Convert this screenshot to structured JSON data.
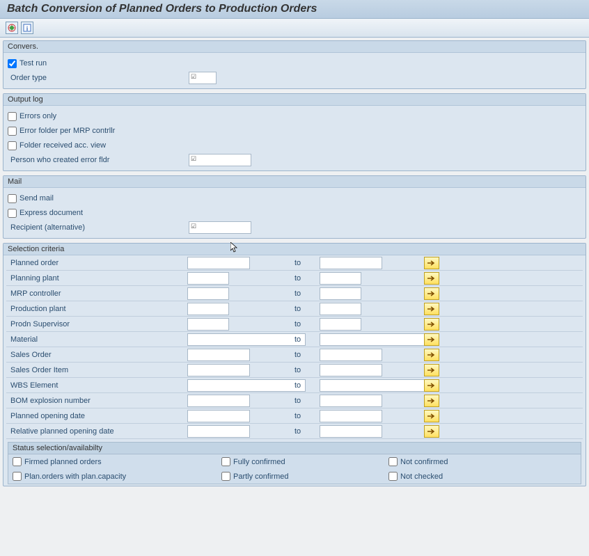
{
  "title": "Batch Conversion of Planned Orders to Production Orders",
  "toolbar": {
    "execute_icon": "execute",
    "info_icon": "info"
  },
  "panels": {
    "convers": {
      "title": "Convers.",
      "test_run": {
        "label": "Test run",
        "checked": true
      },
      "order_type": {
        "label": "Order type",
        "value": ""
      }
    },
    "output_log": {
      "title": "Output log",
      "errors_only": {
        "label": "Errors only",
        "checked": false
      },
      "error_folder_mrp": {
        "label": "Error folder per MRP contrllr",
        "checked": false
      },
      "folder_received": {
        "label": "Folder received acc. view",
        "checked": false
      },
      "person_created": {
        "label": "Person who created error fldr",
        "value": ""
      }
    },
    "mail": {
      "title": "Mail",
      "send_mail": {
        "label": "Send mail",
        "checked": false
      },
      "express_doc": {
        "label": "Express document",
        "checked": false
      },
      "recipient": {
        "label": "Recipient (alternative)",
        "value": ""
      }
    },
    "selection": {
      "title": "Selection criteria",
      "to_label": "to",
      "rows": [
        {
          "label": "Planned order",
          "from": "",
          "to": "",
          "from_w": "input-md",
          "to_w": "input-md"
        },
        {
          "label": "Planning plant",
          "from": "",
          "to": "",
          "from_w": "input-sm",
          "to_w": "input-sm"
        },
        {
          "label": "MRP controller",
          "from": "",
          "to": "",
          "from_w": "input-sm",
          "to_w": "input-sm"
        },
        {
          "label": "Production plant",
          "from": "",
          "to": "",
          "from_w": "input-sm",
          "to_w": "input-sm"
        },
        {
          "label": "Prodn Supervisor",
          "from": "",
          "to": "",
          "from_w": "input-sm",
          "to_w": "input-sm"
        },
        {
          "label": "Material",
          "from": "",
          "to": "",
          "from_w": "input-xl",
          "to_w": "input-xl"
        },
        {
          "label": "Sales Order",
          "from": "",
          "to": "",
          "from_w": "input-md",
          "to_w": "input-md"
        },
        {
          "label": "Sales Order Item",
          "from": "",
          "to": "",
          "from_w": "input-md",
          "to_w": "input-md"
        },
        {
          "label": "WBS Element",
          "from": "",
          "to": "",
          "from_w": "input-xl",
          "to_w": "input-xl"
        },
        {
          "label": "BOM explosion number",
          "from": "",
          "to": "",
          "from_w": "input-md",
          "to_w": "input-md"
        },
        {
          "label": "Planned opening date",
          "from": "",
          "to": "",
          "from_w": "input-md",
          "to_w": "input-md"
        },
        {
          "label": "Relative planned opening date",
          "from": "",
          "to": "",
          "from_w": "input-md",
          "to_w": "input-md"
        }
      ],
      "status": {
        "title": "Status selection/availabilty",
        "firmed": {
          "label": "Firmed planned orders",
          "checked": false
        },
        "plan_capacity": {
          "label": "Plan.orders with plan.capacity",
          "checked": false
        },
        "fully_confirmed": {
          "label": "Fully confirmed",
          "checked": false
        },
        "partly_confirmed": {
          "label": "Partly confirmed",
          "checked": false
        },
        "not_confirmed": {
          "label": "Not confirmed",
          "checked": false
        },
        "not_checked": {
          "label": "Not checked",
          "checked": false
        }
      }
    }
  },
  "colors": {
    "panel_bg": "#dce6f0",
    "panel_header": "#c9d9e8",
    "border": "#9cb4cc",
    "opt_btn_bg": "#ffe060"
  }
}
